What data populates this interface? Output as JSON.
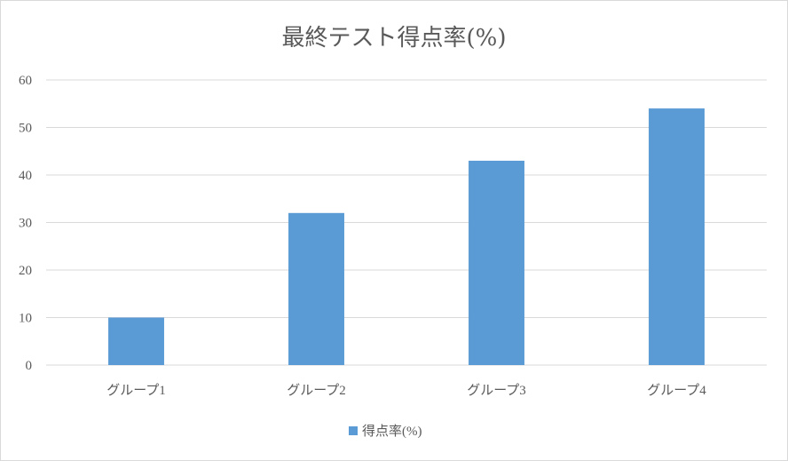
{
  "chart_data": {
    "type": "bar",
    "title": "最終テスト得点率(%)",
    "categories": [
      "グループ1",
      "グループ2",
      "グループ3",
      "グループ4"
    ],
    "series": [
      {
        "name": "得点率(%)",
        "values": [
          10,
          32,
          43,
          54
        ],
        "color": "#5b9bd5"
      }
    ],
    "ylim": [
      0,
      60
    ],
    "yticks": [
      0,
      10,
      20,
      30,
      40,
      50,
      60
    ],
    "grid": true,
    "legend_position": "bottom",
    "gridline_color": "#d9d9d9",
    "text_color": "#595959"
  }
}
